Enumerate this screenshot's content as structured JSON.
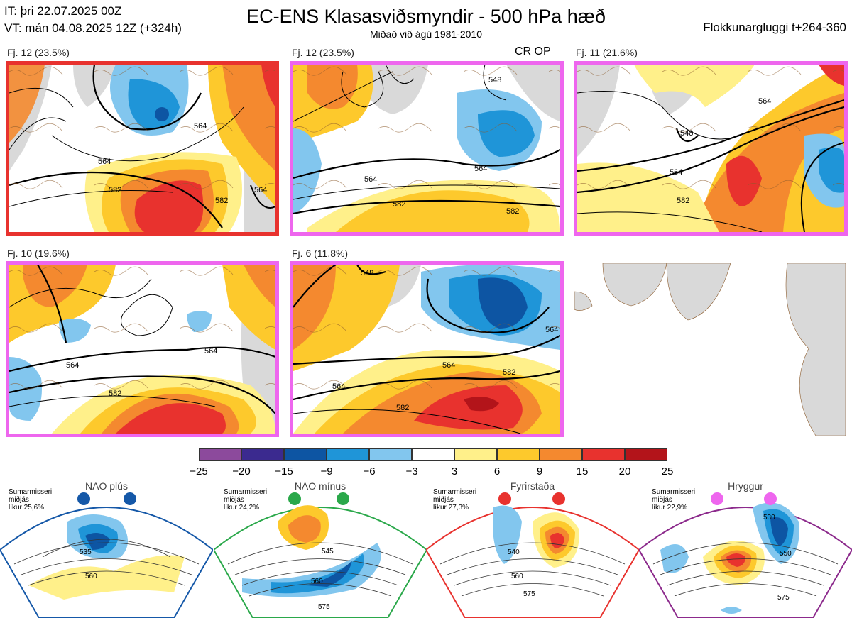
{
  "header": {
    "init_time": "IT: þri 22.07.2025 00Z",
    "valid_time": "VT: mán 04.08.2025 12Z  (+324h)",
    "title": "EC-ENS Klasasviðsmyndir - 500 hPa hæð",
    "subtitle": "Miðað við ágú 1981-2010",
    "window": "Flokkunargluggi t+264-360"
  },
  "clusters": [
    {
      "label": "Fj. 12 (23.5%)",
      "members": 12,
      "percent": 23.5,
      "frame_color": "#e8322e",
      "contours": [
        "564",
        "582",
        "564",
        "582",
        "564"
      ]
    },
    {
      "label": "Fj. 12 (23.5%)",
      "members": 12,
      "percent": 23.5,
      "frame_color": "#ee66ee",
      "contours": [
        "564",
        "582",
        "582",
        "548",
        "564"
      ],
      "extra": "CR OP"
    },
    {
      "label": "Fj. 11 (21.6%)",
      "members": 11,
      "percent": 21.6,
      "frame_color": "#ee66ee",
      "contours": [
        "564",
        "582",
        "564",
        "548"
      ]
    },
    {
      "label": "Fj. 10 (19.6%)",
      "members": 10,
      "percent": 19.6,
      "frame_color": "#ee66ee",
      "contours": [
        "564",
        "582",
        "564"
      ]
    },
    {
      "label": "Fj. 6 (11.8%)",
      "members": 6,
      "percent": 11.8,
      "frame_color": "#ee66ee",
      "contours": [
        "564",
        "564",
        "582",
        "582",
        "548",
        "564"
      ]
    }
  ],
  "colorbar": {
    "ticks": [
      "−25",
      "−20",
      "−15",
      "−9",
      "−6",
      "−3",
      "3",
      "6",
      "9",
      "15",
      "20",
      "25"
    ],
    "colors": [
      "#8c4a9c",
      "#3b2a8f",
      "#0d55a3",
      "#1f95d8",
      "#82c6ee",
      "#ffffff",
      "#fff08a",
      "#fdc92c",
      "#f4892f",
      "#e8322e",
      "#b3141a"
    ]
  },
  "regimes": [
    {
      "name": "NAO plús",
      "season": "Sumarmisseri",
      "median": "miðjás",
      "prob": "líkur 25,6%",
      "color": "#1558a8",
      "contours": [
        "535",
        "560"
      ]
    },
    {
      "name": "NAO mínus",
      "season": "Sumarmisseri",
      "median": "miðjás",
      "prob": "líkur 24,2%",
      "color": "#2aa84a",
      "contours": [
        "545",
        "560",
        "575"
      ]
    },
    {
      "name": "Fyrirstaða",
      "season": "Sumarmisseri",
      "median": "miðjás",
      "prob": "líkur 27,3%",
      "color": "#e8322e",
      "contours": [
        "540",
        "560",
        "575"
      ]
    },
    {
      "name": "Hryggur",
      "season": "Sumarmisseri",
      "median": "miðjás",
      "prob": "líkur 22,9%",
      "color": "#ee66ee",
      "contours": [
        "530",
        "550",
        "575"
      ]
    }
  ]
}
